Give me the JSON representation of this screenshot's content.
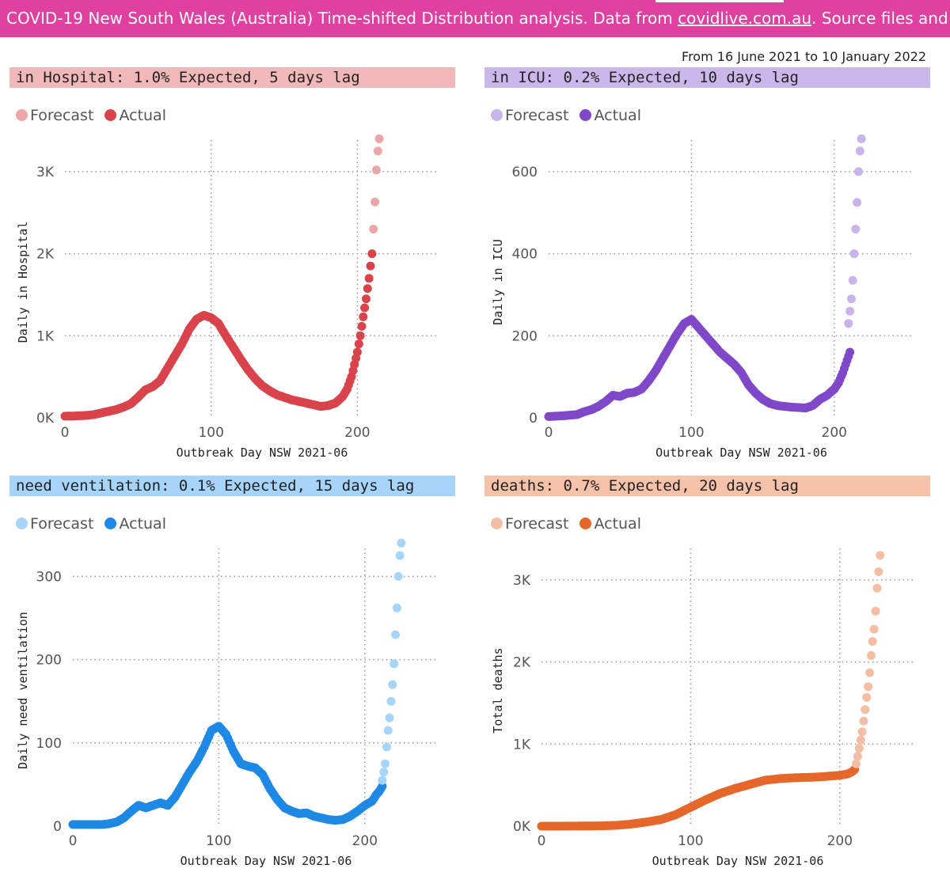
{
  "banner": {
    "text_before": "COVID-19 New South Wales (Australia) Time-shifted Distribution analysis. Data from ",
    "link": "covidlive.com.au",
    "text_after": ". Source files and more info on github"
  },
  "date_range": "From 16 June 2021 to 10 January 2022",
  "legend": {
    "forecast": "Forecast",
    "actual": "Actual"
  },
  "chart_data": [
    {
      "type": "scatter",
      "title": "in Hospital: 1.0% Expected, 5 days lag",
      "xlabel": "Outbreak Day NSW 2021-06",
      "ylabel": "Daily in Hospital",
      "xlim": [
        0,
        255
      ],
      "ylim": [
        0,
        3500
      ],
      "xticks": [
        {
          "v": 0,
          "label": "0"
        },
        {
          "v": 100,
          "label": "100"
        },
        {
          "v": 200,
          "label": "200"
        }
      ],
      "yticks": [
        {
          "v": 0,
          "label": "0K"
        },
        {
          "v": 1000,
          "label": "1K"
        },
        {
          "v": 2000,
          "label": "2K"
        },
        {
          "v": 3000,
          "label": "3K"
        }
      ],
      "colors": {
        "title_bg": "#f0b8b8",
        "actual": "#d9434b",
        "forecast": "#eda6a8"
      },
      "series": [
        {
          "name": "Actual",
          "points": [
            [
              0,
              20
            ],
            [
              5,
              22
            ],
            [
              10,
              25
            ],
            [
              15,
              30
            ],
            [
              20,
              40
            ],
            [
              25,
              60
            ],
            [
              30,
              80
            ],
            [
              35,
              100
            ],
            [
              40,
              130
            ],
            [
              45,
              170
            ],
            [
              50,
              250
            ],
            [
              55,
              340
            ],
            [
              60,
              380
            ],
            [
              65,
              450
            ],
            [
              70,
              600
            ],
            [
              75,
              750
            ],
            [
              80,
              900
            ],
            [
              85,
              1080
            ],
            [
              90,
              1200
            ],
            [
              95,
              1250
            ],
            [
              100,
              1220
            ],
            [
              105,
              1150
            ],
            [
              110,
              1000
            ],
            [
              115,
              860
            ],
            [
              120,
              720
            ],
            [
              125,
              590
            ],
            [
              130,
              480
            ],
            [
              135,
              390
            ],
            [
              140,
              330
            ],
            [
              145,
              280
            ],
            [
              150,
              250
            ],
            [
              155,
              220
            ],
            [
              160,
              200
            ],
            [
              165,
              180
            ],
            [
              170,
              160
            ],
            [
              175,
              140
            ],
            [
              180,
              150
            ],
            [
              185,
              180
            ],
            [
              190,
              260
            ],
            [
              193,
              350
            ],
            [
              196,
              500
            ],
            [
              198,
              650
            ],
            [
              200,
              800
            ],
            [
              202,
              1000
            ],
            [
              204,
              1230
            ],
            [
              206,
              1450
            ],
            [
              208,
              1700
            ],
            [
              209,
              1850
            ],
            [
              210,
              2000
            ]
          ]
        },
        {
          "name": "Forecast",
          "points": [
            [
              211,
              2300
            ],
            [
              212,
              2630
            ],
            [
              213,
              3020
            ],
            [
              214,
              3250
            ],
            [
              215,
              3400
            ]
          ]
        }
      ]
    },
    {
      "type": "scatter",
      "title": "in ICU: 0.2% Expected, 10 days lag",
      "xlabel": "Outbreak Day NSW 2021-06",
      "ylabel": "Daily in ICU",
      "xlim": [
        0,
        255
      ],
      "ylim": [
        0,
        700
      ],
      "xticks": [
        {
          "v": 0,
          "label": "0"
        },
        {
          "v": 100,
          "label": "100"
        },
        {
          "v": 200,
          "label": "200"
        }
      ],
      "yticks": [
        {
          "v": 0,
          "label": "0"
        },
        {
          "v": 200,
          "label": "200"
        },
        {
          "v": 400,
          "label": "400"
        },
        {
          "v": 600,
          "label": "600"
        }
      ],
      "colors": {
        "title_bg": "#cbb8ea",
        "actual": "#7e48c8",
        "forecast": "#c8b3ea"
      },
      "series": [
        {
          "name": "Actual",
          "points": [
            [
              0,
              3
            ],
            [
              10,
              5
            ],
            [
              20,
              8
            ],
            [
              25,
              15
            ],
            [
              30,
              20
            ],
            [
              35,
              28
            ],
            [
              40,
              40
            ],
            [
              45,
              55
            ],
            [
              50,
              52
            ],
            [
              55,
              60
            ],
            [
              60,
              62
            ],
            [
              65,
              70
            ],
            [
              70,
              90
            ],
            [
              75,
              115
            ],
            [
              80,
              145
            ],
            [
              85,
              175
            ],
            [
              90,
              205
            ],
            [
              95,
              230
            ],
            [
              100,
              240
            ],
            [
              105,
              220
            ],
            [
              110,
              200
            ],
            [
              115,
              180
            ],
            [
              120,
              160
            ],
            [
              125,
              145
            ],
            [
              130,
              130
            ],
            [
              135,
              110
            ],
            [
              140,
              80
            ],
            [
              145,
              60
            ],
            [
              150,
              45
            ],
            [
              155,
              35
            ],
            [
              160,
              30
            ],
            [
              165,
              28
            ],
            [
              170,
              26
            ],
            [
              175,
              25
            ],
            [
              180,
              24
            ],
            [
              185,
              30
            ],
            [
              190,
              45
            ],
            [
              195,
              55
            ],
            [
              200,
              70
            ],
            [
              203,
              85
            ],
            [
              206,
              110
            ],
            [
              208,
              130
            ],
            [
              210,
              150
            ],
            [
              211,
              160
            ]
          ]
        },
        {
          "name": "Forecast",
          "points": [
            [
              210,
              230
            ],
            [
              211,
              260
            ],
            [
              212,
              290
            ],
            [
              213,
              335
            ],
            [
              214,
              400
            ],
            [
              215,
              460
            ],
            [
              216,
              525
            ],
            [
              217,
              600
            ],
            [
              218,
              650
            ],
            [
              219,
              680
            ]
          ]
        }
      ]
    },
    {
      "type": "scatter",
      "title": "need ventilation: 0.1% Expected, 15 days lag",
      "xlabel": "Outbreak Day NSW 2021-06",
      "ylabel": "Daily need ventilation",
      "xlim": [
        0,
        250
      ],
      "ylim": [
        0,
        345
      ],
      "xticks": [
        {
          "v": 0,
          "label": "0"
        },
        {
          "v": 100,
          "label": "100"
        },
        {
          "v": 200,
          "label": "200"
        }
      ],
      "yticks": [
        {
          "v": 0,
          "label": "0"
        },
        {
          "v": 100,
          "label": "100"
        },
        {
          "v": 200,
          "label": "200"
        },
        {
          "v": 300,
          "label": "300"
        }
      ],
      "colors": {
        "title_bg": "#a6d4fa",
        "actual": "#1e88e5",
        "forecast": "#a6d4fa"
      },
      "series": [
        {
          "name": "Actual",
          "points": [
            [
              0,
              2
            ],
            [
              10,
              2
            ],
            [
              20,
              2
            ],
            [
              25,
              3
            ],
            [
              30,
              5
            ],
            [
              35,
              10
            ],
            [
              40,
              18
            ],
            [
              45,
              25
            ],
            [
              50,
              22
            ],
            [
              55,
              25
            ],
            [
              60,
              28
            ],
            [
              65,
              25
            ],
            [
              70,
              35
            ],
            [
              75,
              50
            ],
            [
              80,
              65
            ],
            [
              85,
              78
            ],
            [
              90,
              95
            ],
            [
              95,
              115
            ],
            [
              100,
              120
            ],
            [
              105,
              110
            ],
            [
              110,
              90
            ],
            [
              115,
              75
            ],
            [
              120,
              72
            ],
            [
              125,
              70
            ],
            [
              130,
              62
            ],
            [
              135,
              45
            ],
            [
              140,
              32
            ],
            [
              145,
              22
            ],
            [
              150,
              18
            ],
            [
              155,
              15
            ],
            [
              160,
              16
            ],
            [
              165,
              12
            ],
            [
              170,
              10
            ],
            [
              175,
              8
            ],
            [
              180,
              7
            ],
            [
              185,
              8
            ],
            [
              190,
              12
            ],
            [
              195,
              18
            ],
            [
              200,
              25
            ],
            [
              205,
              30
            ],
            [
              208,
              38
            ],
            [
              210,
              42
            ],
            [
              212,
              48
            ]
          ]
        },
        {
          "name": "Forecast",
          "points": [
            [
              212,
              55
            ],
            [
              213,
              65
            ],
            [
              214,
              75
            ],
            [
              215,
              95
            ],
            [
              216,
              115
            ],
            [
              217,
              130
            ],
            [
              218,
              150
            ],
            [
              219,
              170
            ],
            [
              220,
              195
            ],
            [
              221,
              230
            ],
            [
              222,
              262
            ],
            [
              223,
              300
            ],
            [
              224,
              325
            ],
            [
              225,
              340
            ]
          ]
        }
      ]
    },
    {
      "type": "scatter",
      "title": "deaths: 0.7% Expected, 20 days lag",
      "xlabel": "Outbreak Day NSW 2021-06",
      "ylabel": "Total deaths",
      "xlim": [
        0,
        250
      ],
      "ylim": [
        0,
        3500
      ],
      "xticks": [
        {
          "v": 0,
          "label": "0"
        },
        {
          "v": 100,
          "label": "100"
        },
        {
          "v": 200,
          "label": "200"
        }
      ],
      "yticks": [
        {
          "v": 0,
          "label": "0K"
        },
        {
          "v": 1000,
          "label": "1K"
        },
        {
          "v": 2000,
          "label": "2K"
        },
        {
          "v": 3000,
          "label": "3K"
        }
      ],
      "colors": {
        "title_bg": "#f6c2aa",
        "actual": "#e5672a",
        "forecast": "#f4bea4"
      },
      "series": [
        {
          "name": "Actual",
          "points": [
            [
              0,
              0
            ],
            [
              10,
              0
            ],
            [
              20,
              1
            ],
            [
              30,
              2
            ],
            [
              40,
              4
            ],
            [
              50,
              10
            ],
            [
              60,
              25
            ],
            [
              70,
              50
            ],
            [
              80,
              80
            ],
            [
              90,
              140
            ],
            [
              100,
              230
            ],
            [
              110,
              320
            ],
            [
              120,
              400
            ],
            [
              130,
              460
            ],
            [
              140,
              510
            ],
            [
              150,
              560
            ],
            [
              160,
              580
            ],
            [
              170,
              590
            ],
            [
              180,
              595
            ],
            [
              190,
              605
            ],
            [
              200,
              620
            ],
            [
              205,
              635
            ],
            [
              208,
              660
            ],
            [
              210,
              690
            ]
          ]
        },
        {
          "name": "Forecast",
          "points": [
            [
              211,
              760
            ],
            [
              212,
              850
            ],
            [
              213,
              950
            ],
            [
              214,
              1050
            ],
            [
              215,
              1150
            ],
            [
              216,
              1280
            ],
            [
              217,
              1420
            ],
            [
              218,
              1570
            ],
            [
              219,
              1700
            ],
            [
              220,
              1870
            ],
            [
              221,
              2080
            ],
            [
              222,
              2250
            ],
            [
              223,
              2400
            ],
            [
              224,
              2620
            ],
            [
              225,
              2900
            ],
            [
              226,
              3100
            ],
            [
              227,
              3300
            ]
          ]
        }
      ]
    }
  ]
}
